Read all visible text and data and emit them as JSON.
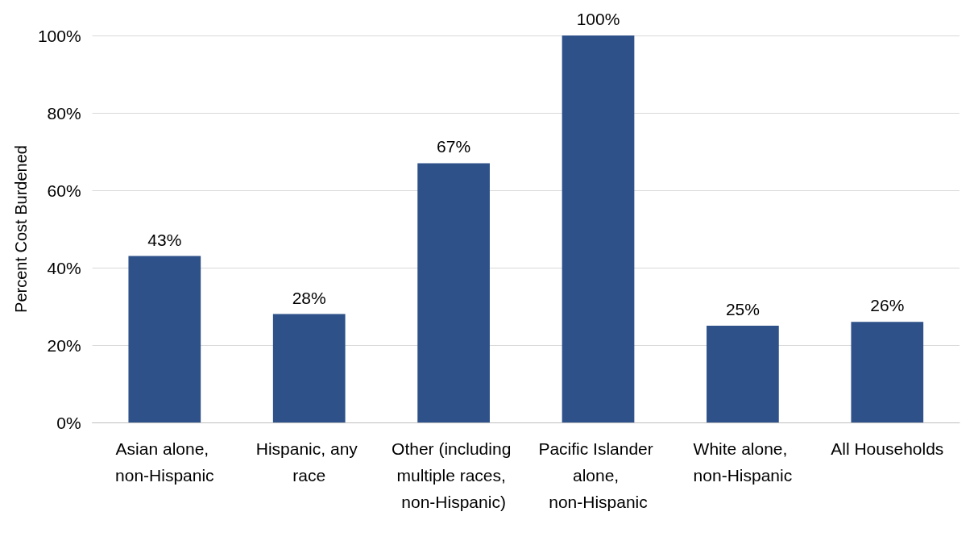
{
  "chart_data": {
    "type": "bar",
    "ylabel": "Percent Cost Burdened",
    "categories": [
      "Asian alone, non-Hispanic",
      "Hispanic, any race",
      "Other (including multiple races, non-Hispanic)",
      "Pacific Islander alone, non-Hispanic",
      "White alone, non-Hispanic",
      "All Households"
    ],
    "values": [
      43,
      28,
      67,
      100,
      25,
      26
    ],
    "value_labels": [
      "43%",
      "28%",
      "67%",
      "100%",
      "25%",
      "26%"
    ],
    "color": "#2e5189",
    "ylim": [
      0,
      100
    ],
    "yticks": [
      {
        "value": 0,
        "label": "0%"
      },
      {
        "value": 20,
        "label": "20%"
      },
      {
        "value": 40,
        "label": "40%"
      },
      {
        "value": 60,
        "label": "60%"
      },
      {
        "value": 80,
        "label": "80%"
      },
      {
        "value": 100,
        "label": "100%"
      }
    ],
    "grid": "y"
  }
}
